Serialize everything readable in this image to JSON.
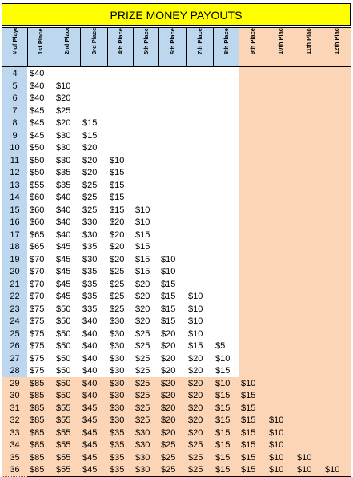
{
  "title": "PRIZE MONEY PAYOUTS",
  "colors": {
    "title_bg": "#ffff00",
    "header_top_bg": "#bdd7ee",
    "header_bottom_bg": "#fbd5b5",
    "row_label_bg": "#bdd7ee",
    "body_bg": "#ffffff",
    "peach_bg": "#fbd5b5"
  },
  "headers": [
    "# of Players",
    "1st Place",
    "2nd Place",
    "3rd Place",
    "4th Place",
    "5th Place",
    "6th Place",
    "7th Place",
    "8th Place",
    "9th Place",
    "10th Place",
    "11th Place",
    "12th Place"
  ],
  "rows": [
    {
      "players": "4",
      "payouts": [
        "$40",
        "",
        "",
        "",
        "",
        "",
        "",
        "",
        "",
        "",
        "",
        ""
      ]
    },
    {
      "players": "5",
      "payouts": [
        "$40",
        "$10",
        "",
        "",
        "",
        "",
        "",
        "",
        "",
        "",
        "",
        ""
      ]
    },
    {
      "players": "6",
      "payouts": [
        "$40",
        "$20",
        "",
        "",
        "",
        "",
        "",
        "",
        "",
        "",
        "",
        ""
      ]
    },
    {
      "players": "7",
      "payouts": [
        "$45",
        "$25",
        "",
        "",
        "",
        "",
        "",
        "",
        "",
        "",
        "",
        ""
      ]
    },
    {
      "players": "8",
      "payouts": [
        "$45",
        "$20",
        "$15",
        "",
        "",
        "",
        "",
        "",
        "",
        "",
        "",
        ""
      ]
    },
    {
      "players": "9",
      "payouts": [
        "$45",
        "$30",
        "$15",
        "",
        "",
        "",
        "",
        "",
        "",
        "",
        "",
        ""
      ]
    },
    {
      "players": "10",
      "payouts": [
        "$50",
        "$30",
        "$20",
        "",
        "",
        "",
        "",
        "",
        "",
        "",
        "",
        ""
      ]
    },
    {
      "players": "11",
      "payouts": [
        "$50",
        "$30",
        "$20",
        "$10",
        "",
        "",
        "",
        "",
        "",
        "",
        "",
        ""
      ]
    },
    {
      "players": "12",
      "payouts": [
        "$50",
        "$35",
        "$20",
        "$15",
        "",
        "",
        "",
        "",
        "",
        "",
        "",
        ""
      ]
    },
    {
      "players": "13",
      "payouts": [
        "$55",
        "$35",
        "$25",
        "$15",
        "",
        "",
        "",
        "",
        "",
        "",
        "",
        ""
      ]
    },
    {
      "players": "14",
      "payouts": [
        "$60",
        "$40",
        "$25",
        "$15",
        "",
        "",
        "",
        "",
        "",
        "",
        "",
        ""
      ]
    },
    {
      "players": "15",
      "payouts": [
        "$60",
        "$40",
        "$25",
        "$15",
        "$10",
        "",
        "",
        "",
        "",
        "",
        "",
        ""
      ]
    },
    {
      "players": "16",
      "payouts": [
        "$60",
        "$40",
        "$30",
        "$20",
        "$10",
        "",
        "",
        "",
        "",
        "",
        "",
        ""
      ]
    },
    {
      "players": "17",
      "payouts": [
        "$65",
        "$40",
        "$30",
        "$20",
        "$15",
        "",
        "",
        "",
        "",
        "",
        "",
        ""
      ]
    },
    {
      "players": "18",
      "payouts": [
        "$65",
        "$45",
        "$35",
        "$20",
        "$15",
        "",
        "",
        "",
        "",
        "",
        "",
        ""
      ]
    },
    {
      "players": "19",
      "payouts": [
        "$70",
        "$45",
        "$30",
        "$20",
        "$15",
        "$10",
        "",
        "",
        "",
        "",
        "",
        ""
      ]
    },
    {
      "players": "20",
      "payouts": [
        "$70",
        "$45",
        "$35",
        "$25",
        "$15",
        "$10",
        "",
        "",
        "",
        "",
        "",
        ""
      ]
    },
    {
      "players": "21",
      "payouts": [
        "$70",
        "$45",
        "$35",
        "$25",
        "$20",
        "$15",
        "",
        "",
        "",
        "",
        "",
        ""
      ]
    },
    {
      "players": "22",
      "payouts": [
        "$70",
        "$45",
        "$35",
        "$25",
        "$20",
        "$15",
        "$10",
        "",
        "",
        "",
        "",
        ""
      ]
    },
    {
      "players": "23",
      "payouts": [
        "$75",
        "$50",
        "$35",
        "$25",
        "$20",
        "$15",
        "$10",
        "",
        "",
        "",
        "",
        ""
      ]
    },
    {
      "players": "24",
      "payouts": [
        "$75",
        "$50",
        "$40",
        "$30",
        "$20",
        "$15",
        "$10",
        "",
        "",
        "",
        "",
        ""
      ]
    },
    {
      "players": "25",
      "payouts": [
        "$75",
        "$50",
        "$40",
        "$30",
        "$25",
        "$20",
        "$10",
        "",
        "",
        "",
        "",
        ""
      ]
    },
    {
      "players": "26",
      "payouts": [
        "$75",
        "$50",
        "$40",
        "$30",
        "$25",
        "$20",
        "$15",
        "$5",
        "",
        "",
        "",
        ""
      ]
    },
    {
      "players": "27",
      "payouts": [
        "$75",
        "$50",
        "$40",
        "$30",
        "$25",
        "$20",
        "$20",
        "$10",
        "",
        "",
        "",
        ""
      ]
    },
    {
      "players": "28",
      "payouts": [
        "$75",
        "$50",
        "$40",
        "$30",
        "$25",
        "$20",
        "$20",
        "$15",
        "",
        "",
        "",
        ""
      ]
    },
    {
      "players": "29",
      "payouts": [
        "$85",
        "$50",
        "$40",
        "$30",
        "$25",
        "$20",
        "$20",
        "$10",
        "$10",
        "",
        "",
        ""
      ]
    },
    {
      "players": "30",
      "payouts": [
        "$85",
        "$50",
        "$40",
        "$30",
        "$25",
        "$20",
        "$20",
        "$15",
        "$15",
        "",
        "",
        ""
      ]
    },
    {
      "players": "31",
      "payouts": [
        "$85",
        "$55",
        "$45",
        "$30",
        "$25",
        "$20",
        "$20",
        "$15",
        "$15",
        "",
        "",
        ""
      ]
    },
    {
      "players": "32",
      "payouts": [
        "$85",
        "$55",
        "$45",
        "$30",
        "$25",
        "$20",
        "$20",
        "$15",
        "$15",
        "$10",
        "",
        ""
      ]
    },
    {
      "players": "33",
      "payouts": [
        "$85",
        "$55",
        "$45",
        "$35",
        "$30",
        "$20",
        "$20",
        "$15",
        "$15",
        "$10",
        "",
        ""
      ]
    },
    {
      "players": "34",
      "payouts": [
        "$85",
        "$55",
        "$45",
        "$35",
        "$30",
        "$25",
        "$25",
        "$15",
        "$15",
        "$10",
        "",
        ""
      ]
    },
    {
      "players": "35",
      "payouts": [
        "$85",
        "$55",
        "$45",
        "$35",
        "$30",
        "$25",
        "$25",
        "$15",
        "$15",
        "$10",
        "$10",
        ""
      ]
    },
    {
      "players": "36",
      "payouts": [
        "$85",
        "$55",
        "$45",
        "$35",
        "$30",
        "$25",
        "$25",
        "$15",
        "$15",
        "$10",
        "$10",
        "$10"
      ]
    }
  ]
}
